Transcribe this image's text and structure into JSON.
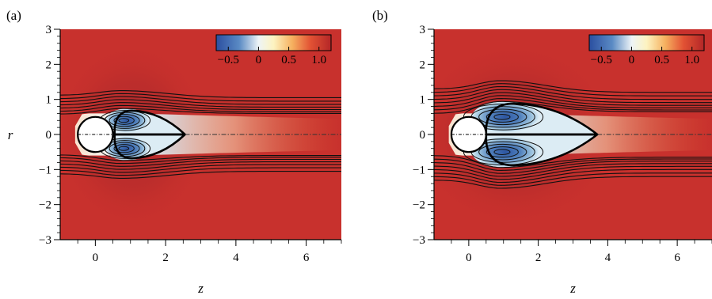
{
  "chart_data": [
    {
      "type": "heatmap",
      "panel_label": "(a)",
      "xlabel": "z",
      "ylabel": "r",
      "xlim": [
        -1,
        7
      ],
      "ylim": [
        -3,
        3
      ],
      "x_ticks": [
        "0",
        "2",
        "4",
        "6"
      ],
      "y_ticks": [
        "−3",
        "−2",
        "−1",
        "0",
        "1",
        "2",
        "3"
      ],
      "colorbar": {
        "range": [
          -0.7,
          1.2
        ],
        "ticks": [
          "−0.5",
          "0",
          "0.5",
          "1.0"
        ],
        "colormap": "blue-white-red (diverging)"
      },
      "sphere": {
        "center_z": 0,
        "radius": 0.5
      },
      "recirculation": {
        "separation_z": 0.55,
        "end_z": 2.55,
        "max_r": 0.68,
        "max_r_at_z": 1.05
      },
      "vortex_center": {
        "z": 0.85,
        "r": 0.4
      },
      "streamlines_outer_r": [
        0.58,
        0.66,
        0.75,
        0.84,
        0.93,
        1.02,
        1.12
      ],
      "streamlines_far_r": [
        0.6,
        0.65,
        0.71,
        0.78,
        0.86,
        0.95,
        1.05,
        1.15
      ],
      "vortex_contour_levels": 5
    },
    {
      "type": "heatmap",
      "panel_label": "(b)",
      "xlabel": "z",
      "ylabel": "",
      "xlim": [
        -1,
        7
      ],
      "ylim": [
        -3,
        3
      ],
      "x_ticks": [
        "0",
        "2",
        "4",
        "6"
      ],
      "y_ticks": [
        "−3",
        "−2",
        "−1",
        "0",
        "1",
        "2",
        "3"
      ],
      "colorbar": {
        "range": [
          -0.7,
          1.2
        ],
        "ticks": [
          "−0.5",
          "0",
          "0.5",
          "1.0"
        ],
        "colormap": "blue-white-red (diverging)"
      },
      "sphere": {
        "center_z": 0,
        "radius": 0.5
      },
      "recirculation": {
        "separation_z": 0.5,
        "end_z": 3.7,
        "max_r": 0.88,
        "max_r_at_z": 1.3
      },
      "vortex_center": {
        "z": 1.0,
        "r": 0.5
      },
      "streamlines_outer_r": [
        0.6,
        0.7,
        0.8,
        0.9,
        1.0,
        1.1,
        1.2,
        1.3
      ],
      "streamlines_far_r": [
        0.65,
        0.7,
        0.76,
        0.83,
        0.91,
        1.0,
        1.1,
        1.2
      ],
      "vortex_contour_levels": 5
    }
  ]
}
